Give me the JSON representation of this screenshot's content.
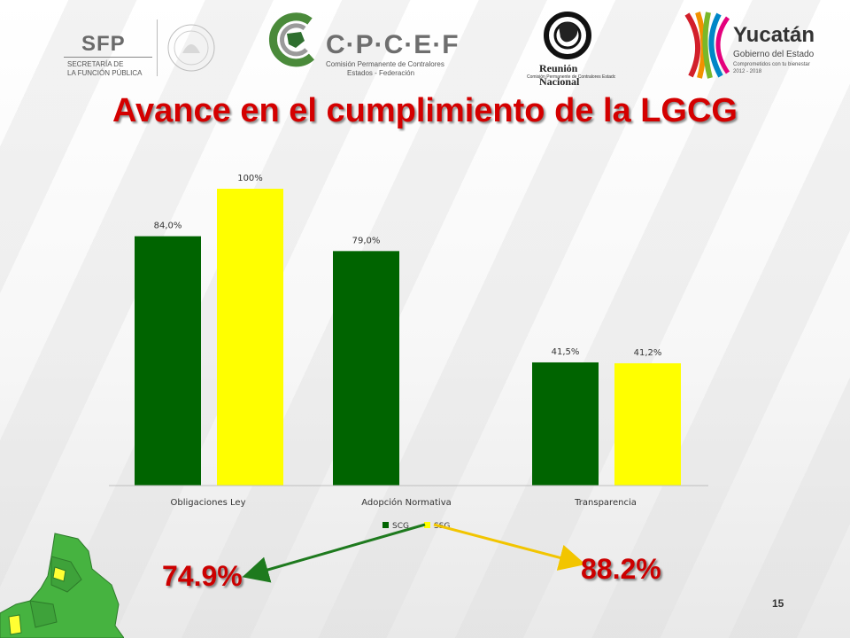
{
  "header": {
    "sfp": {
      "word": "SFP",
      "sub1": "SECRETARÍA DE",
      "sub2": "LA FUNCIÓN PÚBLICA"
    },
    "cpcef": {
      "word": "C·P·C·E·F",
      "sub1": "Comisión Permanente de Contralores",
      "sub2": "Estados - Federación"
    },
    "reunion": {
      "word": "Reunión Nacional",
      "sub": "Comisión Permanente de Contralores Estados-Federación"
    },
    "yucatan": {
      "word": "Yucatán",
      "sub1": "Gobierno del Estado",
      "sub2": "Comprometidos con tu bienestar",
      "sub3": "2012 - 2018"
    }
  },
  "title": "Avance en el cumplimiento de la LGCG",
  "chart_data": {
    "type": "bar",
    "categories": [
      "Obligaciones Ley",
      "Adopción Normativa",
      "Transparencia"
    ],
    "series": [
      {
        "name": "SCG",
        "color": "#006400",
        "values": [
          84.0,
          79.0,
          41.5
        ],
        "labels": [
          "84,0%",
          "79,0%",
          "41,5%"
        ]
      },
      {
        "name": "SSG",
        "color": "#ffff00",
        "values": [
          100,
          null,
          41.2
        ],
        "labels": [
          "100%",
          null,
          "41,2%"
        ]
      }
    ],
    "ylim": [
      0,
      100
    ],
    "legend": "bottom",
    "grid": false
  },
  "footer": {
    "left_pct": "74.9%",
    "right_pct": "88.2%",
    "page_number": "15",
    "arrow_left_color": "#1e7a1e",
    "arrow_right_color": "#f2c500"
  }
}
